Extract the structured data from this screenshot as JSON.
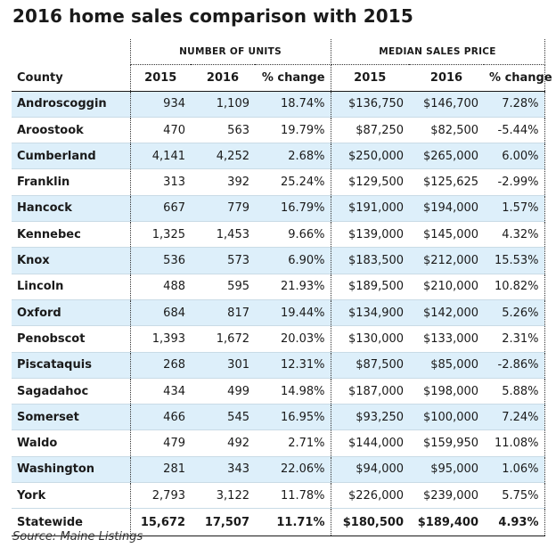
{
  "title": "2016 home sales comparison with 2015",
  "group_headers": {
    "units": "NUMBER OF UNITS",
    "price": "MEDIAN SALES PRICE"
  },
  "columns": {
    "county": "County",
    "units_2015": "2015",
    "units_2016": "2016",
    "units_change": "% change",
    "price_2015": "2015",
    "price_2016": "2016",
    "price_change": "% change"
  },
  "rows": [
    {
      "county": "Androscoggin",
      "u2015": "934",
      "u2016": "1,109",
      "uchg": "18.74%",
      "p2015": "$136,750",
      "p2016": "$146,700",
      "pchg": "7.28%"
    },
    {
      "county": "Aroostook",
      "u2015": "470",
      "u2016": "563",
      "uchg": "19.79%",
      "p2015": "$87,250",
      "p2016": "$82,500",
      "pchg": "-5.44%"
    },
    {
      "county": "Cumberland",
      "u2015": "4,141",
      "u2016": "4,252",
      "uchg": "2.68%",
      "p2015": "$250,000",
      "p2016": "$265,000",
      "pchg": "6.00%"
    },
    {
      "county": "Franklin",
      "u2015": "313",
      "u2016": "392",
      "uchg": "25.24%",
      "p2015": "$129,500",
      "p2016": "$125,625",
      "pchg": "-2.99%"
    },
    {
      "county": "Hancock",
      "u2015": "667",
      "u2016": "779",
      "uchg": "16.79%",
      "p2015": "$191,000",
      "p2016": "$194,000",
      "pchg": "1.57%"
    },
    {
      "county": "Kennebec",
      "u2015": "1,325",
      "u2016": "1,453",
      "uchg": "9.66%",
      "p2015": "$139,000",
      "p2016": "$145,000",
      "pchg": "4.32%"
    },
    {
      "county": "Knox",
      "u2015": "536",
      "u2016": "573",
      "uchg": "6.90%",
      "p2015": "$183,500",
      "p2016": "$212,000",
      "pchg": "15.53%"
    },
    {
      "county": "Lincoln",
      "u2015": "488",
      "u2016": "595",
      "uchg": "21.93%",
      "p2015": "$189,500",
      "p2016": "$210,000",
      "pchg": "10.82%"
    },
    {
      "county": "Oxford",
      "u2015": "684",
      "u2016": "817",
      "uchg": "19.44%",
      "p2015": "$134,900",
      "p2016": "$142,000",
      "pchg": "5.26%"
    },
    {
      "county": "Penobscot",
      "u2015": "1,393",
      "u2016": "1,672",
      "uchg": "20.03%",
      "p2015": "$130,000",
      "p2016": "$133,000",
      "pchg": "2.31%"
    },
    {
      "county": "Piscataquis",
      "u2015": "268",
      "u2016": "301",
      "uchg": "12.31%",
      "p2015": "$87,500",
      "p2016": "$85,000",
      "pchg": "-2.86%"
    },
    {
      "county": "Sagadahoc",
      "u2015": "434",
      "u2016": "499",
      "uchg": "14.98%",
      "p2015": "$187,000",
      "p2016": "$198,000",
      "pchg": "5.88%"
    },
    {
      "county": "Somerset",
      "u2015": "466",
      "u2016": "545",
      "uchg": "16.95%",
      "p2015": "$93,250",
      "p2016": "$100,000",
      "pchg": "7.24%"
    },
    {
      "county": "Waldo",
      "u2015": "479",
      "u2016": "492",
      "uchg": "2.71%",
      "p2015": "$144,000",
      "p2016": "$159,950",
      "pchg": "11.08%"
    },
    {
      "county": "Washington",
      "u2015": "281",
      "u2016": "343",
      "uchg": "22.06%",
      "p2015": "$94,000",
      "p2016": "$95,000",
      "pchg": "1.06%"
    },
    {
      "county": "York",
      "u2015": "2,793",
      "u2016": "3,122",
      "uchg": "11.78%",
      "p2015": "$226,000",
      "p2016": "$239,000",
      "pchg": "5.75%"
    }
  ],
  "total": {
    "county": "Statewide",
    "u2015": "15,672",
    "u2016": "17,507",
    "uchg": "11.71%",
    "p2015": "$180,500",
    "p2016": "$189,400",
    "pchg": "4.93%"
  },
  "source": "Source: Maine Listings",
  "colors": {
    "band": "#ddeffa",
    "text": "#1a1a1a"
  }
}
